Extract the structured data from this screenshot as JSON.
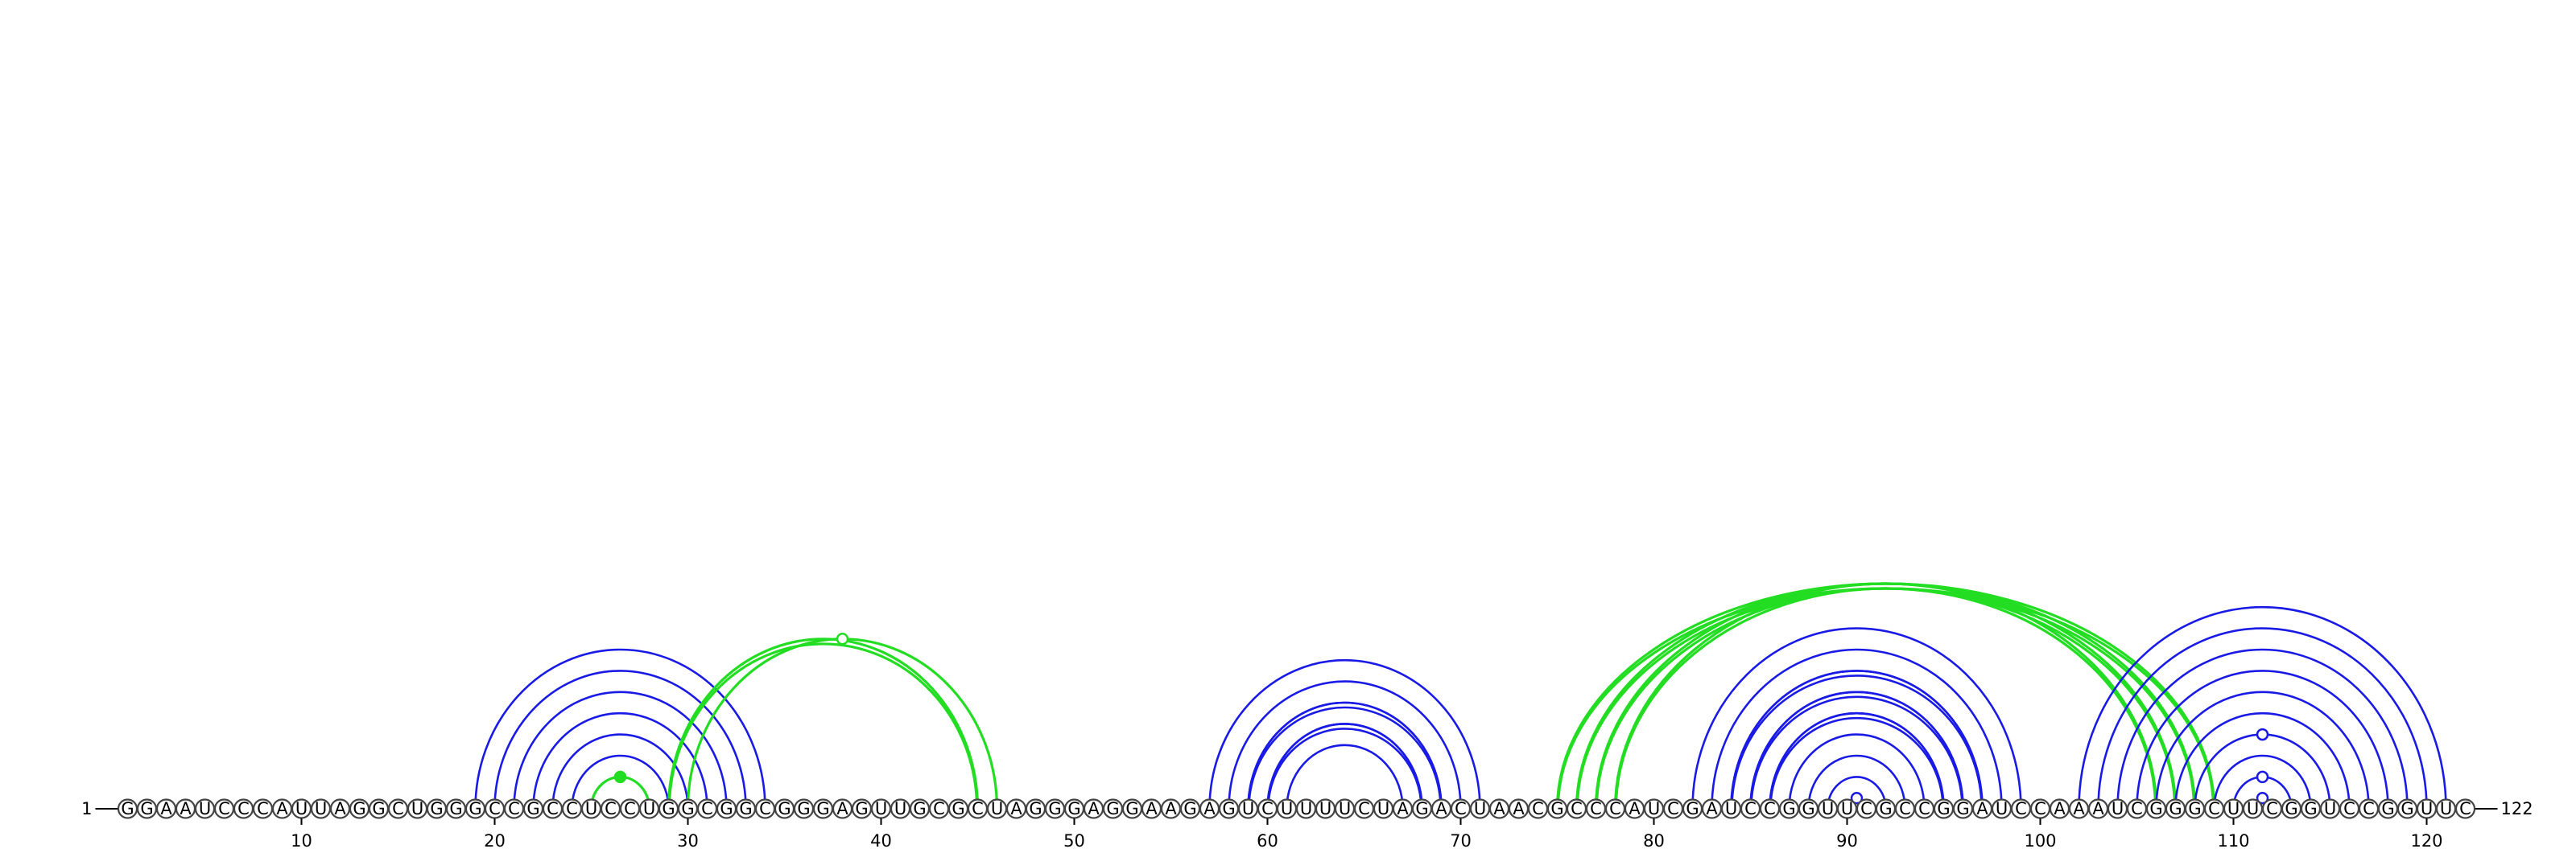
{
  "sequence": "GGAAUCCCAUUAGGCUGGGCCGCCUCCUGGCGGCGGGAGUUGCGCUAGGGAGGAAGAGUCUUUUCUAGACUAACGCCCAUCGAUCCGGUUCGCCGGAUCCAAAUCGGGCUUCGGUCCGGUUC",
  "start_label": "1",
  "end_label": "122",
  "position_ticks": [
    "10",
    "20",
    "30",
    "40",
    "50",
    "60",
    "70",
    "80",
    "90",
    "100",
    "110",
    "120"
  ],
  "colors": {
    "primary_arc": "#1a1ae6",
    "secondary_arc": "#22dd22",
    "circle_stroke": "#444444"
  },
  "arc_groups": [
    {
      "color": "primary",
      "style": "single",
      "pairs": [
        [
          19,
          34
        ],
        [
          20,
          33
        ],
        [
          21,
          32
        ],
        [
          22,
          31
        ],
        [
          23,
          30
        ],
        [
          24,
          29
        ],
        [
          25,
          28
        ]
      ]
    },
    {
      "color": "secondary",
      "style": "single",
      "pairs": [
        [
          25,
          28
        ]
      ],
      "marker": "filled"
    },
    {
      "color": "secondary",
      "style": "single",
      "pairs": [
        [
          30,
          46
        ]
      ],
      "marker": "open"
    },
    {
      "color": "secondary",
      "style": "double",
      "pairs": [
        [
          29,
          45
        ]
      ]
    },
    {
      "color": "primary",
      "style": "single",
      "pairs": [
        [
          57,
          71
        ],
        [
          58,
          70
        ],
        [
          59,
          69
        ],
        [
          60,
          68
        ],
        [
          61,
          67
        ]
      ]
    },
    {
      "color": "primary",
      "style": "double",
      "pairs": [
        [
          59,
          69
        ],
        [
          60,
          68
        ]
      ]
    },
    {
      "color": "secondary",
      "style": "double",
      "pairs": [
        [
          75,
          109
        ],
        [
          76,
          108
        ],
        [
          77,
          107
        ],
        [
          78,
          106
        ]
      ]
    },
    {
      "color": "primary",
      "style": "single",
      "pairs": [
        [
          82,
          99
        ],
        [
          83,
          98
        ],
        [
          84,
          97
        ],
        [
          85,
          96
        ],
        [
          86,
          95
        ],
        [
          87,
          94
        ],
        [
          88,
          93
        ],
        [
          89,
          92
        ]
      ]
    },
    {
      "color": "primary",
      "style": "double",
      "pairs": [
        [
          84,
          97
        ],
        [
          85,
          96
        ],
        [
          86,
          95
        ]
      ]
    },
    {
      "color": "primary",
      "style": "single",
      "pairs": [
        [
          90,
          91
        ]
      ],
      "marker": "open"
    },
    {
      "color": "primary",
      "style": "single",
      "pairs": [
        [
          102,
          121
        ],
        [
          103,
          120
        ],
        [
          104,
          119
        ],
        [
          105,
          118
        ],
        [
          106,
          117
        ],
        [
          107,
          116
        ],
        [
          108,
          115
        ],
        [
          109,
          114
        ],
        [
          110,
          113
        ]
      ]
    },
    {
      "color": "primary",
      "style": "single",
      "pairs": [
        [
          111,
          112
        ]
      ],
      "marker": "open"
    },
    {
      "color": "primary",
      "style": "marker_only",
      "pairs": [
        [
          108,
          115
        ],
        [
          110,
          113
        ]
      ],
      "marker": "open"
    }
  ]
}
